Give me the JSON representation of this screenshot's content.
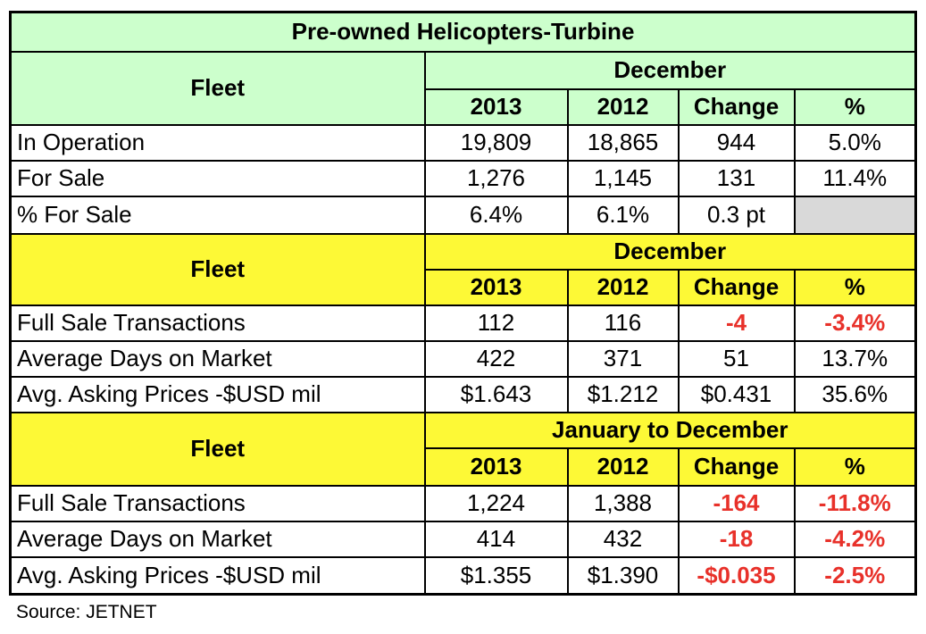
{
  "title": "Pre-owned Helicopters-Turbine",
  "source": "Source: JETNET",
  "colors": {
    "green": "#ccffcc",
    "yellow": "#fdf936",
    "negative": "#e8312a"
  },
  "sections": [
    {
      "fleet": "Fleet",
      "period": "December",
      "cols": [
        "2013",
        "2012",
        "Change",
        "%"
      ],
      "rows": [
        {
          "label": "In Operation",
          "v": [
            "19,809",
            "18,865",
            "944",
            "5.0%"
          ]
        },
        {
          "label": "For Sale",
          "v": [
            "1,276",
            "1,145",
            "131",
            "11.4%"
          ]
        },
        {
          "label": "% For Sale",
          "v": [
            "6.4%",
            "6.1%",
            "0.3 pt",
            ""
          ]
        }
      ]
    },
    {
      "fleet": "Fleet",
      "period": "December",
      "cols": [
        "2013",
        "2012",
        "Change",
        "%"
      ],
      "rows": [
        {
          "label": "Full Sale Transactions",
          "v": [
            "112",
            "116",
            "-4",
            "-3.4%"
          ]
        },
        {
          "label": "Average Days on Market",
          "v": [
            "422",
            "371",
            "51",
            "13.7%"
          ]
        },
        {
          "label": "Avg. Asking Prices -$USD mil",
          "v": [
            "$1.643",
            "$1.212",
            "$0.431",
            "35.6%"
          ]
        }
      ]
    },
    {
      "fleet": "Fleet",
      "period": "January to December",
      "cols": [
        "2013",
        "2012",
        "Change",
        "%"
      ],
      "rows": [
        {
          "label": "Full Sale Transactions",
          "v": [
            "1,224",
            "1,388",
            "-164",
            "-11.8%"
          ]
        },
        {
          "label": "Average Days on Market",
          "v": [
            "414",
            "432",
            "-18",
            "-4.2%"
          ]
        },
        {
          "label": "Avg. Asking Prices -$USD mil",
          "v": [
            "$1.355",
            "$1.390",
            "-$0.035",
            "-2.5%"
          ]
        }
      ]
    }
  ]
}
